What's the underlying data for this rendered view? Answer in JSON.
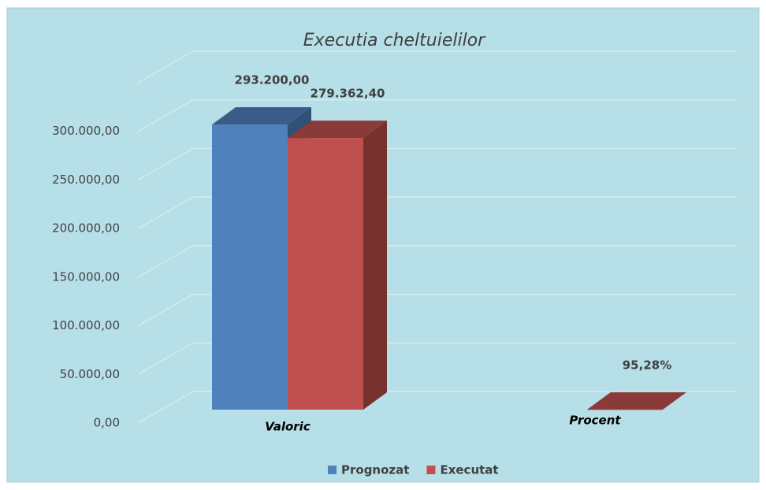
{
  "chart_data": {
    "type": "bar3d",
    "title": "Executia cheltuielilor",
    "categories": [
      "Valoric",
      "Procent"
    ],
    "series": [
      {
        "name": "Prognozat",
        "color": "#4f81bd",
        "values": [
          293200,
          null
        ],
        "value_labels": [
          "293.200,00",
          null
        ]
      },
      {
        "name": "Executat",
        "color": "#c0504d",
        "values": [
          279362.4,
          95.28
        ],
        "value_labels": [
          "279.362,40",
          "95,28%"
        ]
      }
    ],
    "ylim": [
      0,
      350000
    ],
    "yticks": [
      {
        "value": 0,
        "label": "0,00"
      },
      {
        "value": 50000,
        "label": "50.000,00"
      },
      {
        "value": 100000,
        "label": "100.000,00"
      },
      {
        "value": 150000,
        "label": "150.000,00"
      },
      {
        "value": 200000,
        "label": "200.000,00"
      },
      {
        "value": 250000,
        "label": "250.000,00"
      },
      {
        "value": 300000,
        "label": "300.000,00"
      }
    ],
    "grid": true,
    "legend": "bottom"
  }
}
